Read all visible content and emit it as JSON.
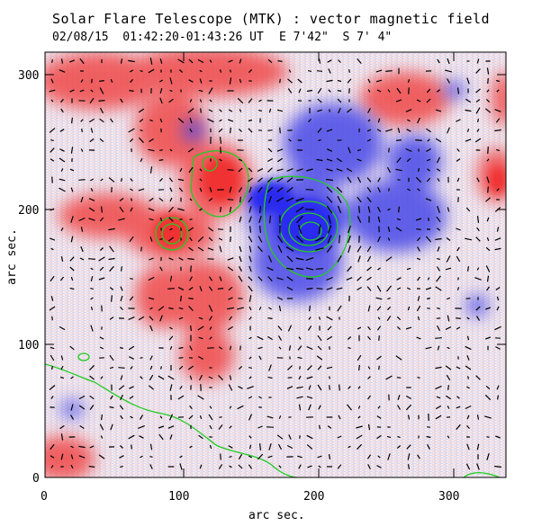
{
  "title": "Solar Flare Telescope (MTK) : vector magnetic field",
  "obs_time": "02/08/15  01:42:20-01:43:26 UT",
  "obs_position": "E 7'42\"  S 7' 4\"",
  "xlabel": "arc sec.",
  "ylabel": "arc sec.",
  "x_ticks": [
    "0",
    "100",
    "200",
    "300"
  ],
  "y_ticks": [
    "0",
    "100",
    "200",
    "300"
  ],
  "x_range": [
    0,
    340
  ],
  "y_range": [
    0,
    320
  ],
  "colors": {
    "positive_polarity": "#ff3b3b",
    "negative_polarity": "#3b3bff",
    "contour": "#22cc22",
    "vector": "#000000"
  }
}
